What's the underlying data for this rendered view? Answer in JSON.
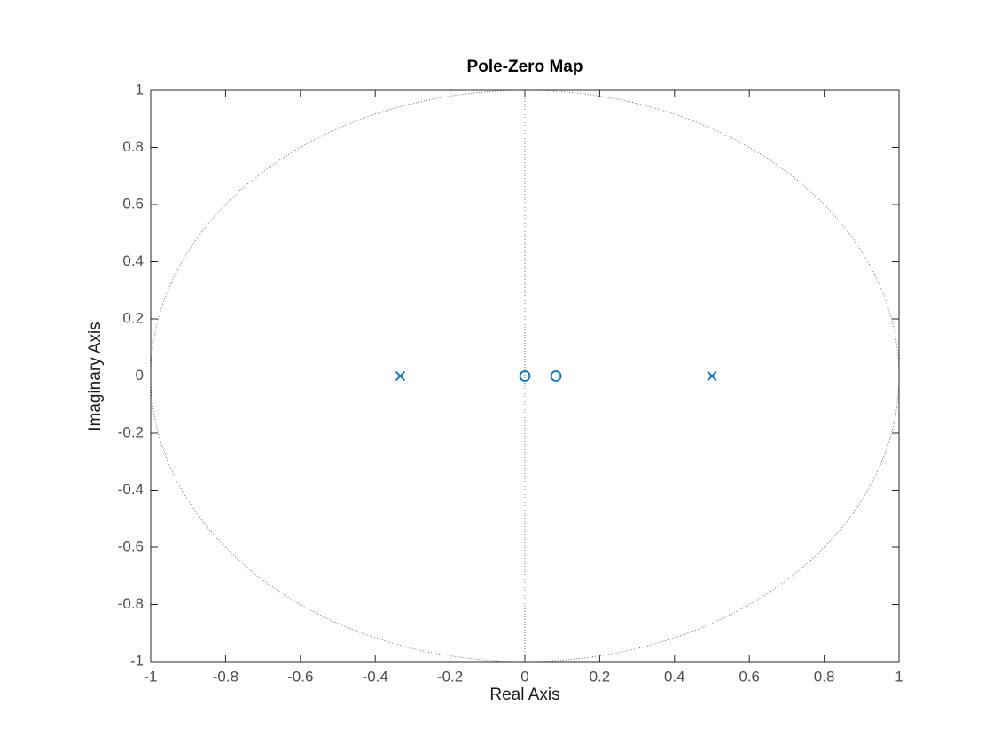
{
  "chart_data": {
    "type": "scatter",
    "title": "Pole-Zero Map",
    "x_label": "Real Axis",
    "y_label": "Imaginary Axis",
    "xlim": [
      -1,
      1
    ],
    "ylim": [
      -1,
      1
    ],
    "xticks": [
      -1,
      -0.8,
      -0.6,
      -0.4,
      -0.2,
      0,
      0.2,
      0.4,
      0.6,
      0.8,
      1
    ],
    "yticks": [
      -1,
      -0.8,
      -0.6,
      -0.4,
      -0.2,
      0,
      0.2,
      0.4,
      0.6,
      0.8,
      1
    ],
    "grid": false,
    "unit_circle": true,
    "series": [
      {
        "marker": "x",
        "color": "#0072bd",
        "x": [
          -0.333,
          0.5
        ],
        "y": [
          0,
          0
        ]
      },
      {
        "marker": "o",
        "color": "#0072bd",
        "x": [
          0,
          0.083
        ],
        "y": [
          0,
          0
        ]
      }
    ]
  }
}
